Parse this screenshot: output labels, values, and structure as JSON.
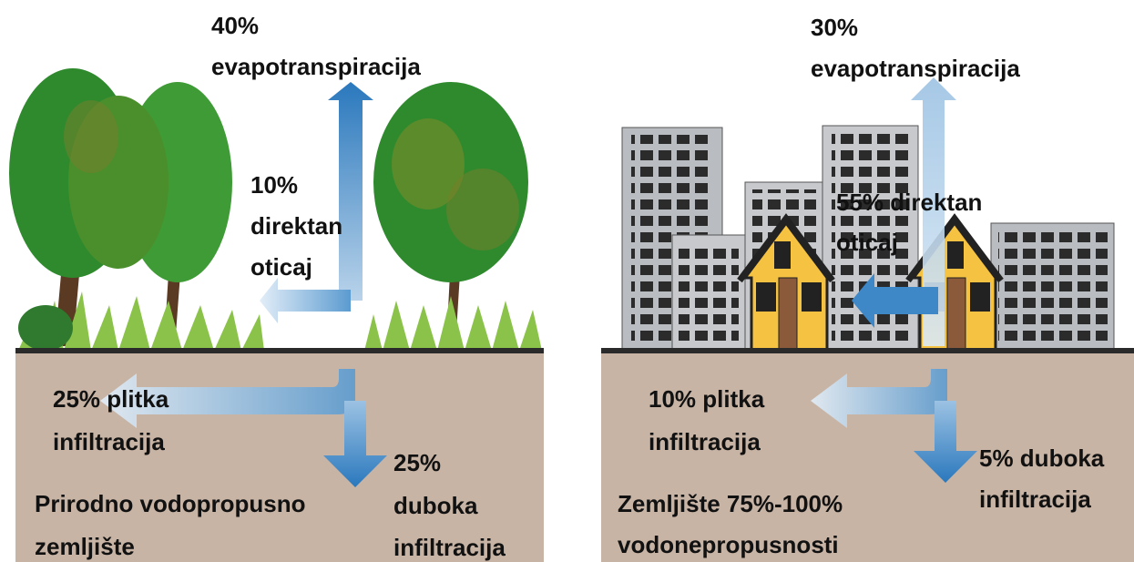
{
  "panels": [
    {
      "evapotranspiration": [
        "40%",
        "evapotranspiracija"
      ],
      "runoff": [
        "10%",
        "direktan",
        "oticaj"
      ],
      "shallow": [
        "25% plitka",
        "infiltracija"
      ],
      "deep": [
        "25%",
        "duboka",
        "infiltracija"
      ],
      "soil": [
        "Prirodno vodopropusno",
        "zemljište"
      ]
    },
    {
      "evapotranspiration": [
        "30%",
        "evapotranspiracija"
      ],
      "runoff": [
        "55% direktan",
        "oticaj"
      ],
      "shallow": [
        "10% plitka",
        "infiltracija"
      ],
      "deep": [
        "5% duboka",
        "infiltracija"
      ],
      "soil": [
        "Zemljište 75%-100%",
        "vodonepropusnosti"
      ]
    }
  ]
}
